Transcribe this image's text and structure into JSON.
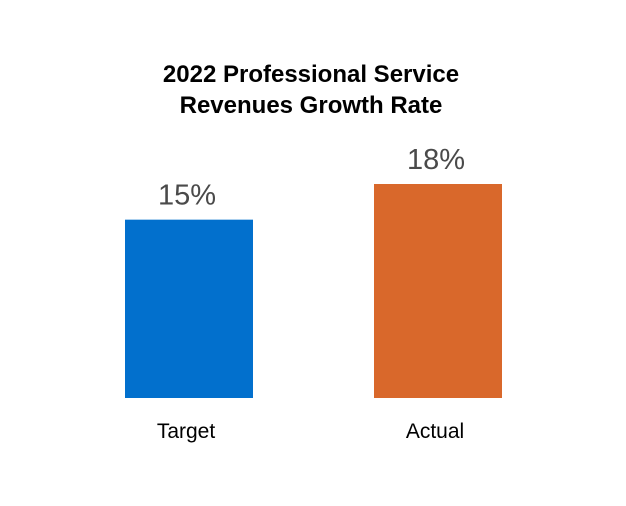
{
  "chart_data": {
    "type": "bar",
    "title_lines": [
      "2022 Professional Service",
      "Revenues Growth Rate"
    ],
    "categories": [
      "Target",
      "Actual"
    ],
    "values": [
      15,
      18
    ],
    "value_labels": [
      "15%",
      "18%"
    ],
    "bar_colors": [
      "#0270cd",
      "#d9682b"
    ],
    "ylim": [
      0,
      18
    ],
    "xlabel": "",
    "ylabel": "",
    "grid": false,
    "legend": false
  }
}
